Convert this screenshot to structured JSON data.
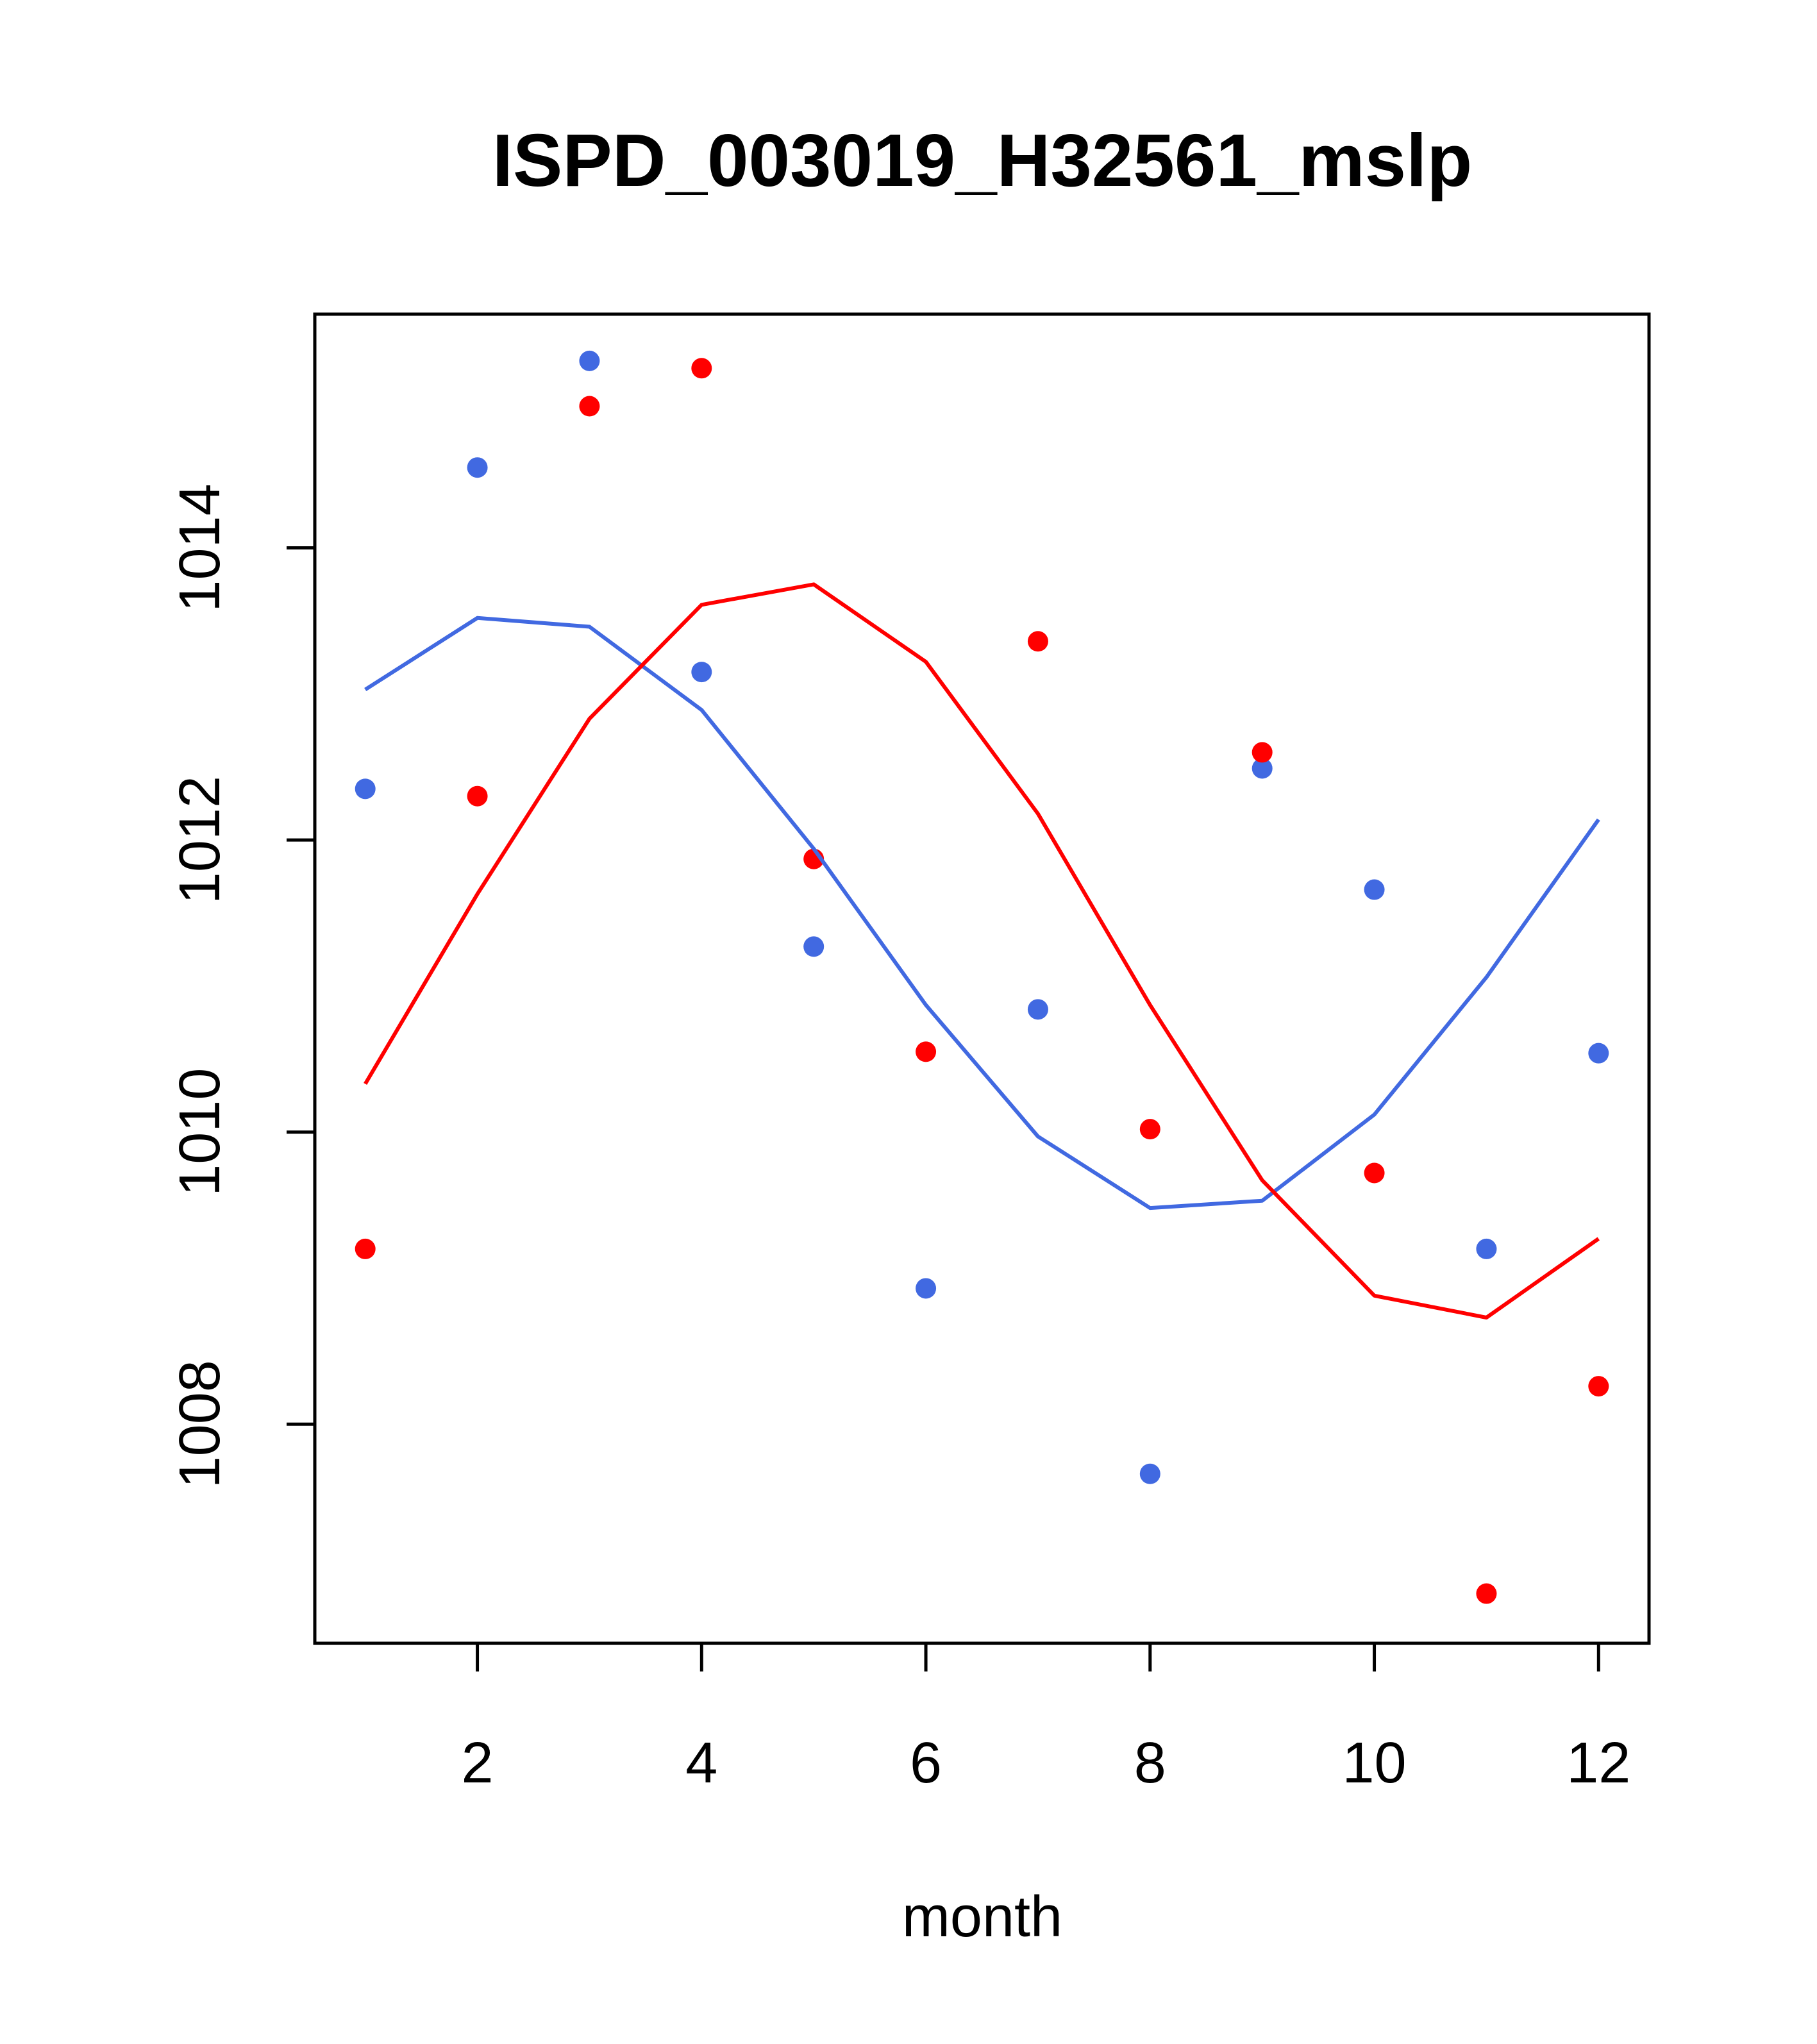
{
  "chart_data": {
    "type": "scatter",
    "title": "ISPD_003019_H32561_mslp",
    "xlabel": "month",
    "ylabel": "",
    "xlim": [
      0.55,
      12.45
    ],
    "ylim": [
      1006.5,
      1015.6
    ],
    "x_ticks": [
      2,
      4,
      6,
      8,
      10,
      12
    ],
    "x_tick_labels": [
      "2",
      "4",
      "6",
      "8",
      "10",
      "12"
    ],
    "y_ticks": [
      1008,
      1010,
      1012,
      1014
    ],
    "y_tick_labels": [
      "1008",
      "1010",
      "1012",
      "1014"
    ],
    "grid": false,
    "legend": "none",
    "series": [
      {
        "name": "blue points",
        "kind": "points",
        "color": "#4169e1",
        "x": [
          1,
          2,
          3,
          4,
          5,
          6,
          7,
          8,
          9,
          10,
          11,
          12
        ],
        "values": [
          1012.35,
          1014.55,
          1015.28,
          1013.15,
          1011.27,
          1008.93,
          1010.84,
          1007.66,
          1012.49,
          1011.66,
          1009.2,
          1010.54
        ]
      },
      {
        "name": "red points",
        "kind": "points",
        "color": "#ff0000",
        "x": [
          1,
          2,
          3,
          4,
          5,
          6,
          7,
          8,
          9,
          10,
          11,
          12
        ],
        "values": [
          1009.2,
          1012.3,
          1014.97,
          1015.23,
          1011.87,
          1010.55,
          1013.36,
          1010.02,
          1012.6,
          1009.72,
          1006.84,
          1008.26
        ]
      },
      {
        "name": "blue line",
        "kind": "line",
        "color": "#4169e1",
        "x": [
          1,
          2,
          3,
          4,
          5,
          6,
          7,
          8,
          9,
          10,
          11,
          12
        ],
        "values": [
          1013.03,
          1013.52,
          1013.46,
          1012.89,
          1011.94,
          1010.87,
          1009.97,
          1009.48,
          1009.53,
          1010.12,
          1011.06,
          1012.14
        ]
      },
      {
        "name": "red line",
        "kind": "line",
        "color": "#ff0000",
        "x": [
          1,
          2,
          3,
          4,
          5,
          6,
          7,
          8,
          9,
          10,
          11,
          12
        ],
        "values": [
          1010.33,
          1011.63,
          1012.83,
          1013.61,
          1013.75,
          1013.22,
          1012.18,
          1010.87,
          1009.67,
          1008.88,
          1008.73,
          1009.27
        ]
      }
    ]
  }
}
